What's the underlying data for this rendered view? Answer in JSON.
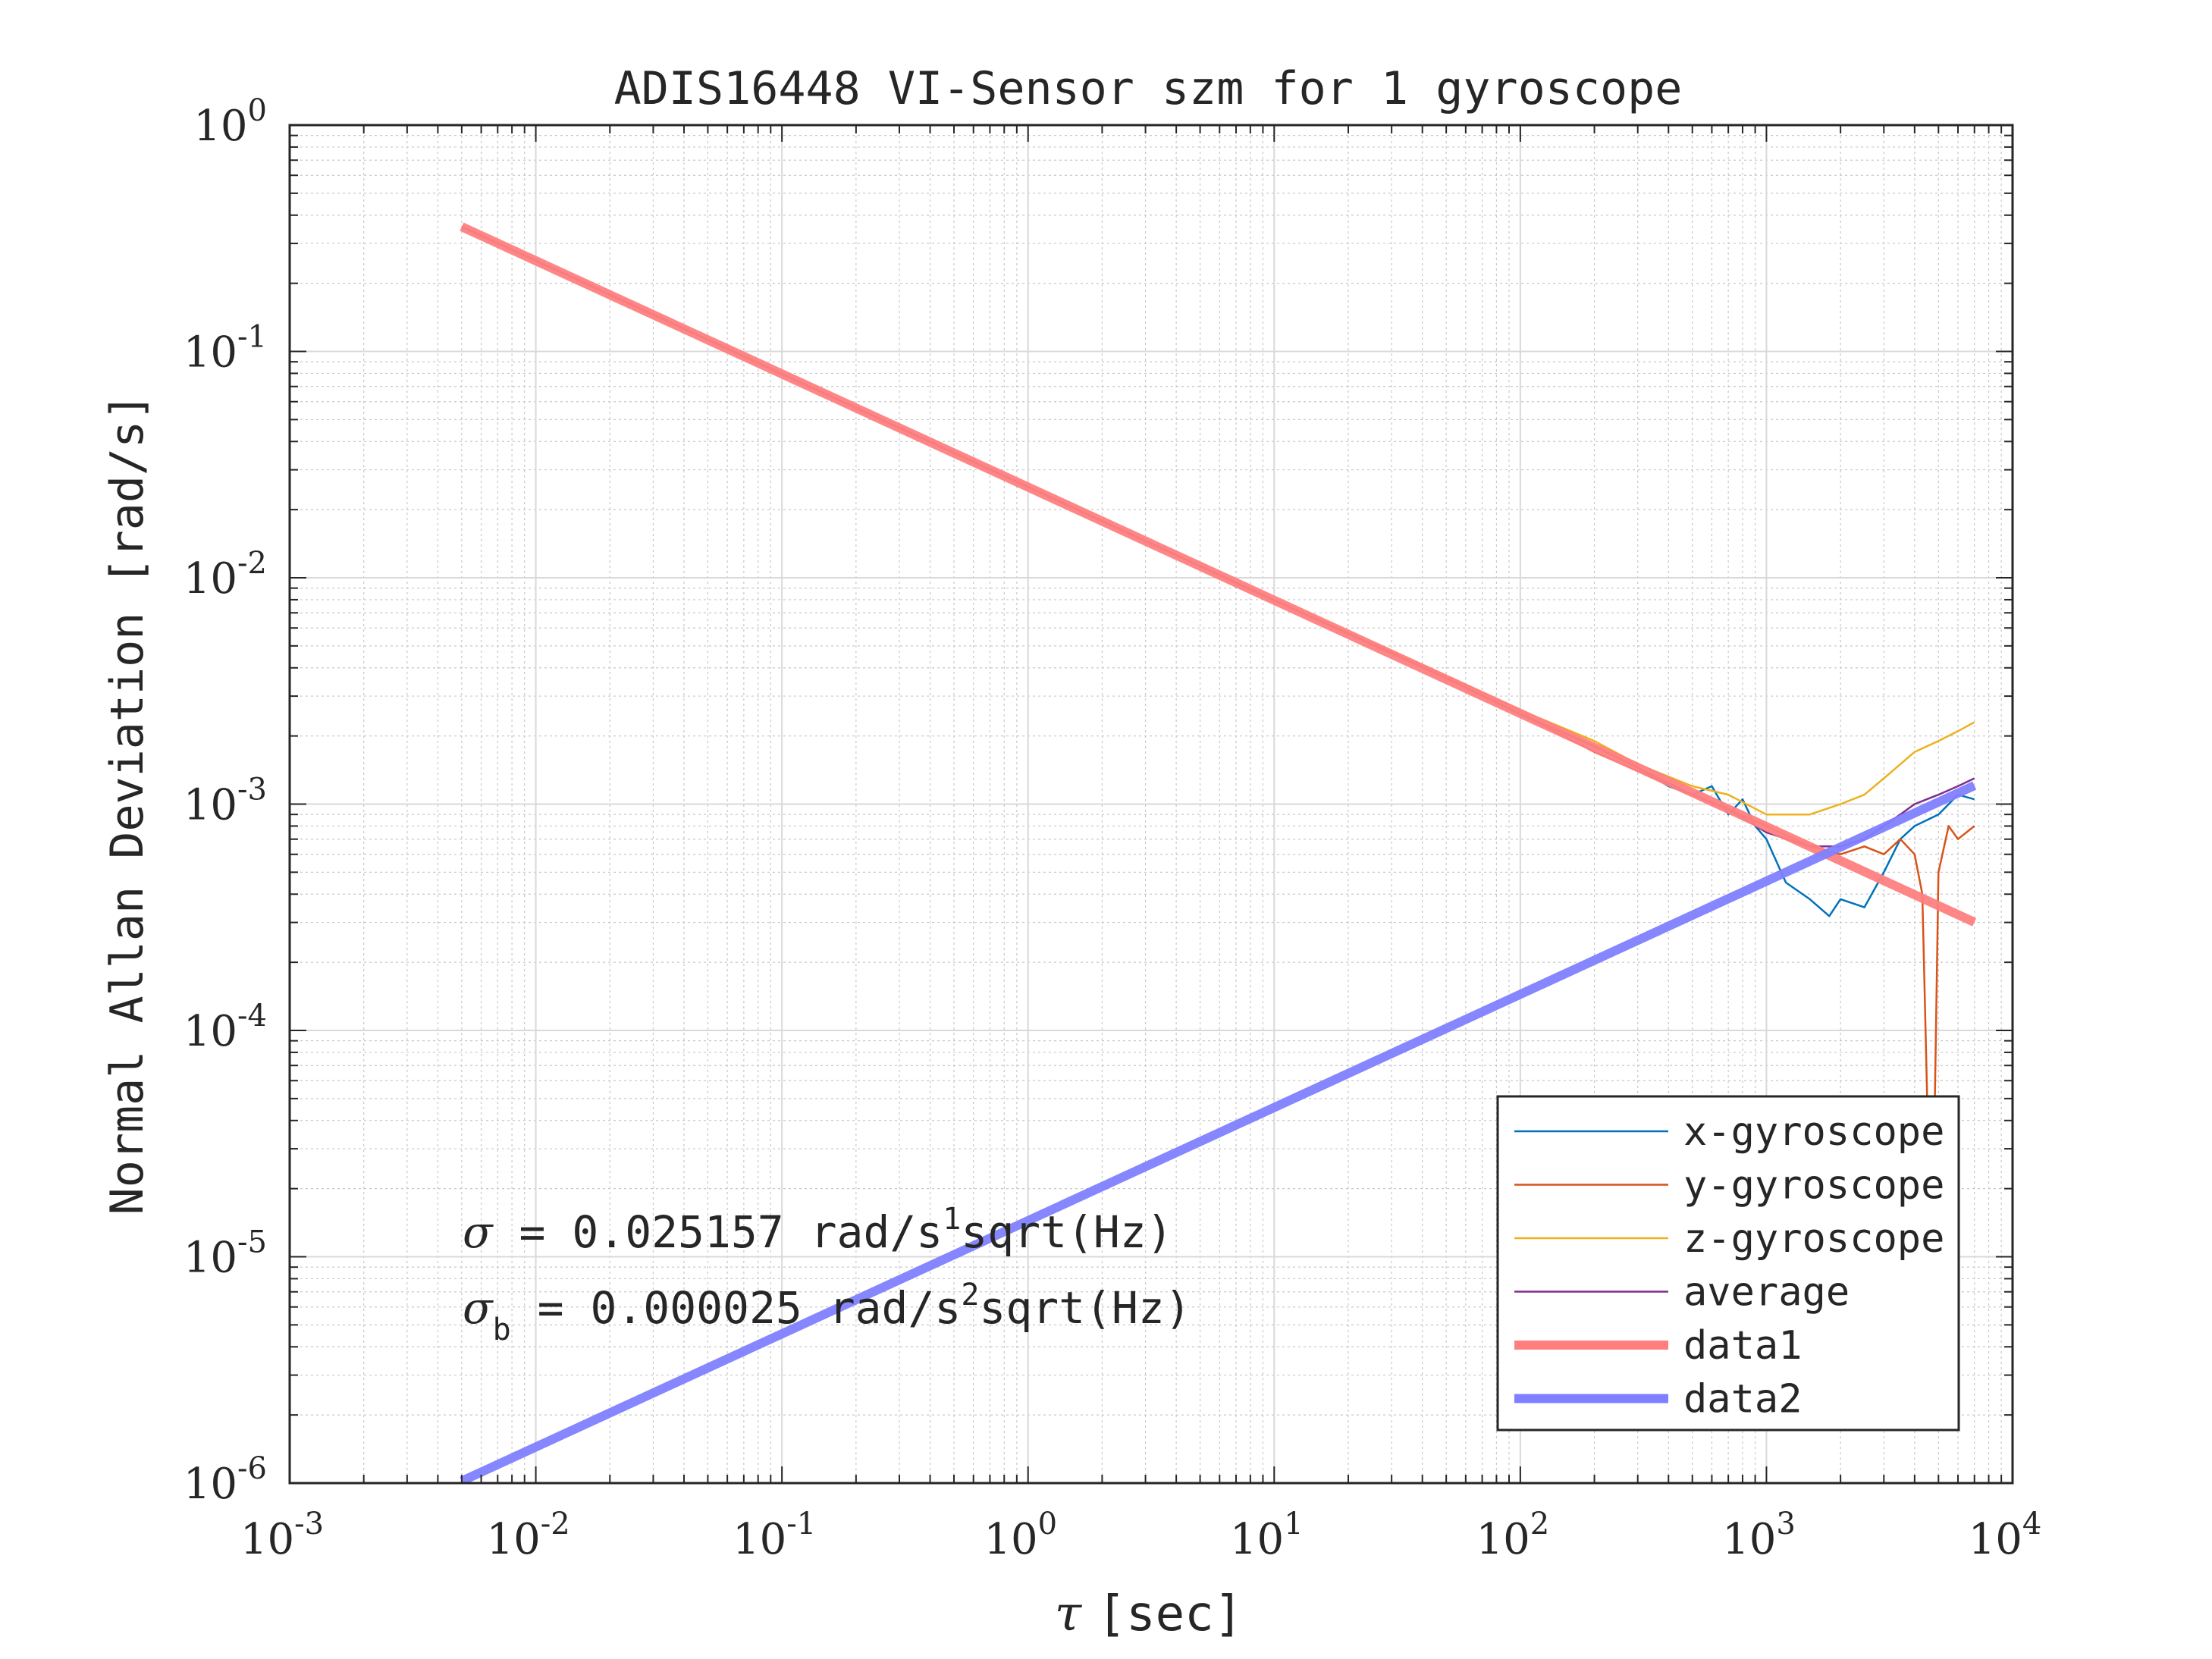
{
  "chart_data": {
    "type": "line",
    "title": "ADIS16448 VI-Sensor szm for 1 gyroscope",
    "xlabel": "[sec]",
    "xlabel_symbol": "τ",
    "ylabel": "Normal Allan Deviation [rad/s]",
    "x_scale": "log",
    "y_scale": "log",
    "xlim": [
      0.001,
      10000
    ],
    "ylim": [
      1e-06,
      1
    ],
    "x_ticks": [
      {
        "base": "10",
        "exp": "-3",
        "value": 0.001
      },
      {
        "base": "10",
        "exp": "-2",
        "value": 0.01
      },
      {
        "base": "10",
        "exp": "-1",
        "value": 0.1
      },
      {
        "base": "10",
        "exp": "0",
        "value": 1
      },
      {
        "base": "10",
        "exp": "1",
        "value": 10
      },
      {
        "base": "10",
        "exp": "2",
        "value": 100
      },
      {
        "base": "10",
        "exp": "3",
        "value": 1000
      },
      {
        "base": "10",
        "exp": "4",
        "value": 10000
      }
    ],
    "y_ticks": [
      {
        "base": "10",
        "exp": "0",
        "value": 1
      },
      {
        "base": "10",
        "exp": "-1",
        "value": 0.1
      },
      {
        "base": "10",
        "exp": "-2",
        "value": 0.01
      },
      {
        "base": "10",
        "exp": "-3",
        "value": 0.001
      },
      {
        "base": "10",
        "exp": "-4",
        "value": 0.0001
      },
      {
        "base": "10",
        "exp": "-5",
        "value": 1e-05
      },
      {
        "base": "10",
        "exp": "-6",
        "value": 1e-06
      }
    ],
    "grid": true,
    "minor_grid": true,
    "legend_position": "bottom-right",
    "series": [
      {
        "name": "x-gyroscope",
        "color": "#0072BD",
        "width": 2.5,
        "x": [
          0.005,
          0.01,
          0.1,
          1,
          10,
          50,
          100,
          200,
          300,
          400,
          500,
          600,
          700,
          800,
          900,
          1000,
          1200,
          1500,
          1800,
          2000,
          2500,
          3000,
          3500,
          4000,
          5000,
          6000,
          7000
        ],
        "y": [
          0.355,
          0.252,
          0.0796,
          0.0252,
          0.00796,
          0.0036,
          0.0025,
          0.0018,
          0.00145,
          0.0012,
          0.0011,
          0.0012,
          0.0009,
          0.00105,
          0.0008,
          0.0007,
          0.00045,
          0.00038,
          0.00032,
          0.00038,
          0.00035,
          0.0005,
          0.0007,
          0.0008,
          0.0009,
          0.0011,
          0.00105
        ]
      },
      {
        "name": "y-gyroscope",
        "color": "#D95319",
        "width": 2.5,
        "x": [
          0.005,
          0.01,
          0.1,
          1,
          10,
          50,
          100,
          200,
          300,
          500,
          700,
          1000,
          1500,
          2000,
          2500,
          3000,
          3500,
          4000,
          4300,
          4500,
          4600,
          4800,
          5000,
          5500,
          6000,
          7000
        ],
        "y": [
          0.355,
          0.252,
          0.0796,
          0.0252,
          0.00796,
          0.0036,
          0.0025,
          0.0017,
          0.0014,
          0.0011,
          0.00095,
          0.0008,
          0.00065,
          0.0006,
          0.00065,
          0.0006,
          0.0007,
          0.0006,
          0.0004,
          5e-05,
          4e-06,
          3e-05,
          0.0005,
          0.0008,
          0.0007,
          0.0008
        ]
      },
      {
        "name": "z-gyroscope",
        "color": "#EDB120",
        "width": 2.5,
        "x": [
          0.005,
          0.01,
          0.1,
          1,
          10,
          50,
          100,
          200,
          300,
          500,
          700,
          1000,
          1500,
          2000,
          2500,
          3000,
          3500,
          4000,
          5000,
          6000,
          7000
        ],
        "y": [
          0.355,
          0.252,
          0.0796,
          0.0252,
          0.00796,
          0.0037,
          0.0026,
          0.0019,
          0.0015,
          0.0012,
          0.0011,
          0.0009,
          0.0009,
          0.001,
          0.0011,
          0.0013,
          0.0015,
          0.0017,
          0.0019,
          0.0021,
          0.0023
        ]
      },
      {
        "name": "average",
        "color": "#7E2F8E",
        "width": 2.5,
        "x": [
          0.005,
          0.01,
          0.1,
          1,
          10,
          50,
          100,
          200,
          300,
          500,
          700,
          1000,
          1500,
          2000,
          2500,
          3000,
          3500,
          4000,
          5000,
          6000,
          7000
        ],
        "y": [
          0.355,
          0.252,
          0.0796,
          0.0252,
          0.00796,
          0.0036,
          0.0025,
          0.0018,
          0.00145,
          0.0011,
          0.00095,
          0.00075,
          0.00065,
          0.00065,
          0.0007,
          0.0008,
          0.0009,
          0.001,
          0.0011,
          0.0012,
          0.0013
        ]
      },
      {
        "name": "data1",
        "color": "#FF7F7F",
        "width": 12,
        "x": [
          0.005,
          7000
        ],
        "y": [
          0.355779,
          0.000300687
        ]
      },
      {
        "name": "data2",
        "color": "#7F7FFF",
        "width": 12,
        "x": [
          0.005,
          7000
        ],
        "y": [
          1.021e-06,
          0.001208
        ]
      }
    ],
    "annotations": [
      {
        "symbol": "σ",
        "subscript": "",
        "text": " = 0.025157 rad/s",
        "superscript": "1",
        "suffix": "sqrt(Hz)"
      },
      {
        "symbol": "σ",
        "subscript": "b",
        "text": " = 0.000025 rad/s",
        "superscript": "2",
        "suffix": "sqrt(Hz)"
      }
    ]
  }
}
